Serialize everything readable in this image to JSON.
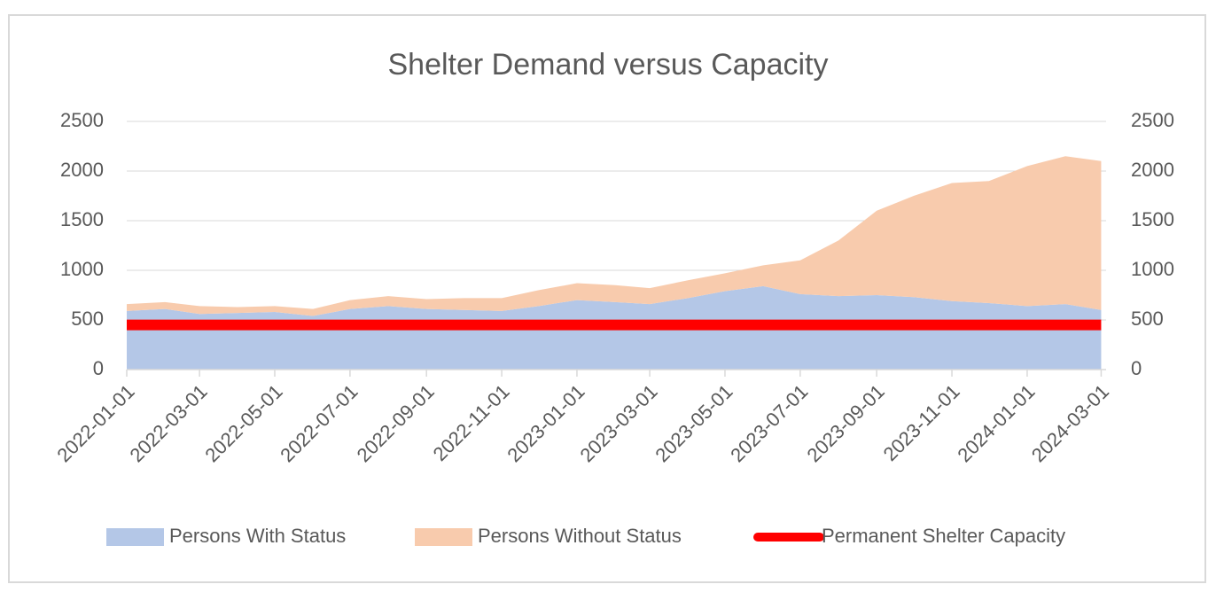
{
  "chart_data": {
    "type": "stacked_area",
    "title": "Shelter Demand versus Capacity",
    "x": [
      "2022-01-01",
      "2022-02-01",
      "2022-03-01",
      "2022-04-01",
      "2022-05-01",
      "2022-06-01",
      "2022-07-01",
      "2022-08-01",
      "2022-09-01",
      "2022-10-01",
      "2022-11-01",
      "2022-12-01",
      "2023-01-01",
      "2023-02-01",
      "2023-03-01",
      "2023-04-01",
      "2023-05-01",
      "2023-06-01",
      "2023-07-01",
      "2023-08-01",
      "2023-09-01",
      "2023-10-01",
      "2023-11-01",
      "2023-12-01",
      "2024-01-01",
      "2024-02-01",
      "2024-03-01"
    ],
    "series": [
      {
        "name": "Persons With Status",
        "color": "#b4c7e7",
        "values": [
          590,
          610,
          560,
          570,
          580,
          540,
          610,
          640,
          610,
          600,
          590,
          640,
          700,
          680,
          660,
          720,
          790,
          840,
          760,
          740,
          750,
          730,
          690,
          670,
          640,
          660,
          600
        ]
      },
      {
        "name": "Persons Without Status",
        "color": "#f8cbad",
        "values": [
          70,
          70,
          80,
          60,
          60,
          70,
          90,
          100,
          100,
          120,
          130,
          160,
          170,
          170,
          160,
          180,
          180,
          210,
          340,
          560,
          850,
          1020,
          1190,
          1230,
          1410,
          1490,
          1500
        ]
      },
      {
        "name": "Permanent Shelter Capacity",
        "color": "#ff0000",
        "kind": "line",
        "values": [
          450,
          450,
          450,
          450,
          450,
          450,
          450,
          450,
          450,
          450,
          450,
          450,
          450,
          450,
          450,
          450,
          450,
          450,
          450,
          450,
          450,
          450,
          450,
          450,
          450,
          450,
          450
        ]
      }
    ],
    "xlim": [
      "2022-01-01",
      "2024-03-05"
    ],
    "xticks": [
      "2022-01-01",
      "2022-03-01",
      "2022-05-01",
      "2022-07-01",
      "2022-09-01",
      "2022-11-01",
      "2023-01-01",
      "2023-03-01",
      "2023-05-01",
      "2023-07-01",
      "2023-09-01",
      "2023-11-01",
      "2024-01-01",
      "2024-03-01"
    ],
    "ylim": [
      0,
      2500
    ],
    "yticks": [
      0,
      500,
      1000,
      1500,
      2000,
      2500
    ],
    "y2lim": [
      0,
      2500
    ],
    "y2ticks": [
      0,
      500,
      1000,
      1500,
      2000,
      2500
    ],
    "grid": true,
    "legend": "bottom"
  }
}
